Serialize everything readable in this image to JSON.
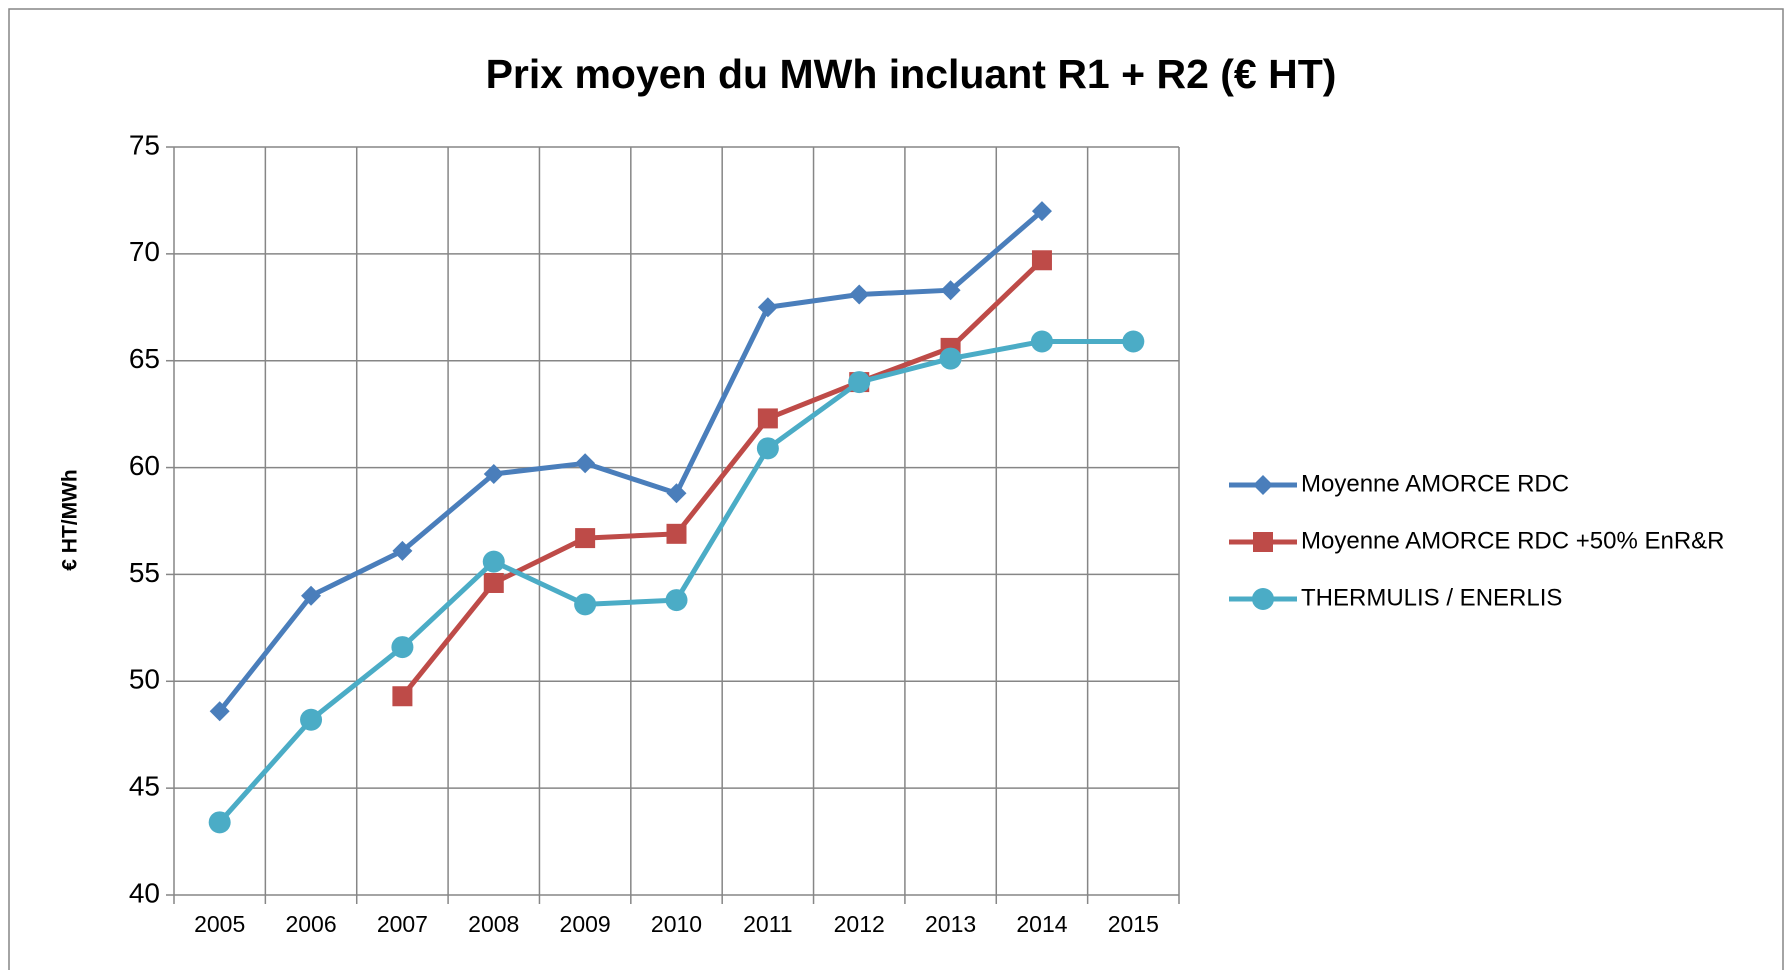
{
  "chart_data": {
    "type": "line",
    "title": "Prix moyen du MWh incluant R1 + R2 (€ HT)",
    "y_label": "€ HT/MWh",
    "categories": [
      "2005",
      "2006",
      "2007",
      "2008",
      "2009",
      "2010",
      "2011",
      "2012",
      "2013",
      "2014",
      "2015"
    ],
    "series": [
      {
        "name": "Moyenne AMORCE RDC",
        "color": "#4a7ebb",
        "marker": "diamond",
        "values": [
          48.6,
          54.0,
          56.1,
          59.7,
          60.2,
          58.8,
          67.5,
          68.1,
          68.3,
          72.0,
          null
        ]
      },
      {
        "name": "Moyenne AMORCE RDC +50% EnR&R",
        "color": "#be4b48",
        "marker": "square",
        "values": [
          null,
          null,
          49.3,
          54.6,
          56.7,
          56.9,
          62.3,
          64.0,
          65.6,
          69.7,
          null
        ]
      },
      {
        "name": "THERMULIS / ENERLIS",
        "color": "#4bacc6",
        "marker": "circle",
        "values": [
          43.4,
          48.2,
          51.6,
          55.6,
          53.6,
          53.8,
          60.9,
          64.0,
          65.1,
          65.9,
          65.9
        ]
      }
    ],
    "ylim": [
      40,
      75
    ],
    "yticks": [
      40,
      45,
      50,
      55,
      60,
      65,
      70,
      75
    ],
    "grid": true,
    "legend": "right"
  }
}
